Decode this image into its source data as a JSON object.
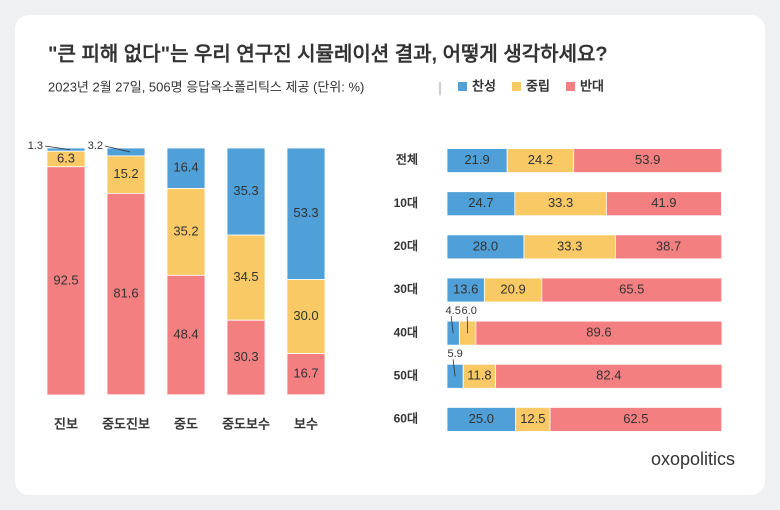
{
  "chart_data": [
    {
      "type": "bar",
      "stacked": true,
      "horizontal": false,
      "title": "\"큰 피해 없다\"는 우리 연구진 시뮬레이션 결과, 어떻게 생각하세요?",
      "subtitle": "2023년 2월 27일, 506명 응답옥소폴리틱스 제공 (단위: %)",
      "categories": [
        "진보",
        "중도진보",
        "중도",
        "중도보수",
        "보수"
      ],
      "series": [
        {
          "name": "찬성",
          "color": "#4f9fd8",
          "values": [
            1.3,
            3.2,
            16.4,
            35.3,
            53.3
          ]
        },
        {
          "name": "중립",
          "color": "#f8c965",
          "values": [
            6.3,
            15.2,
            35.2,
            34.5,
            30.0
          ],
          "value_labels": [
            "6.3",
            "15.2",
            "35.2",
            "34.5",
            "30.0"
          ]
        },
        {
          "name": "반대",
          "color": "#f47f80",
          "values": [
            92.5,
            81.6,
            48.4,
            30.3,
            16.7
          ]
        }
      ]
    },
    {
      "type": "bar",
      "stacked": true,
      "horizontal": true,
      "categories": [
        "전체",
        "10대",
        "20대",
        "30대",
        "40대",
        "50대",
        "60대"
      ],
      "series": [
        {
          "color": "#4f9fd8",
          "values": [
            21.9,
            24.7,
            28.0,
            13.6,
            4.5,
            5.9,
            25.0
          ],
          "value_labels": [
            "21.9",
            "24.7",
            "28.0",
            "13.6",
            "4.5",
            "5.9",
            "25.0"
          ]
        },
        {
          "color": "#f8c965",
          "values": [
            24.2,
            33.3,
            33.3,
            20.9,
            6.0,
            11.8,
            12.5
          ],
          "value_labels": [
            "24.2",
            "33.3",
            "33.3",
            "20.9",
            "6.0",
            "11.8",
            "12.5"
          ]
        },
        {
          "color": "#f47f80",
          "values": [
            53.9,
            41.9,
            38.7,
            65.5,
            89.6,
            82.4,
            62.5
          ]
        }
      ]
    }
  ],
  "brand": "oxopolitics"
}
